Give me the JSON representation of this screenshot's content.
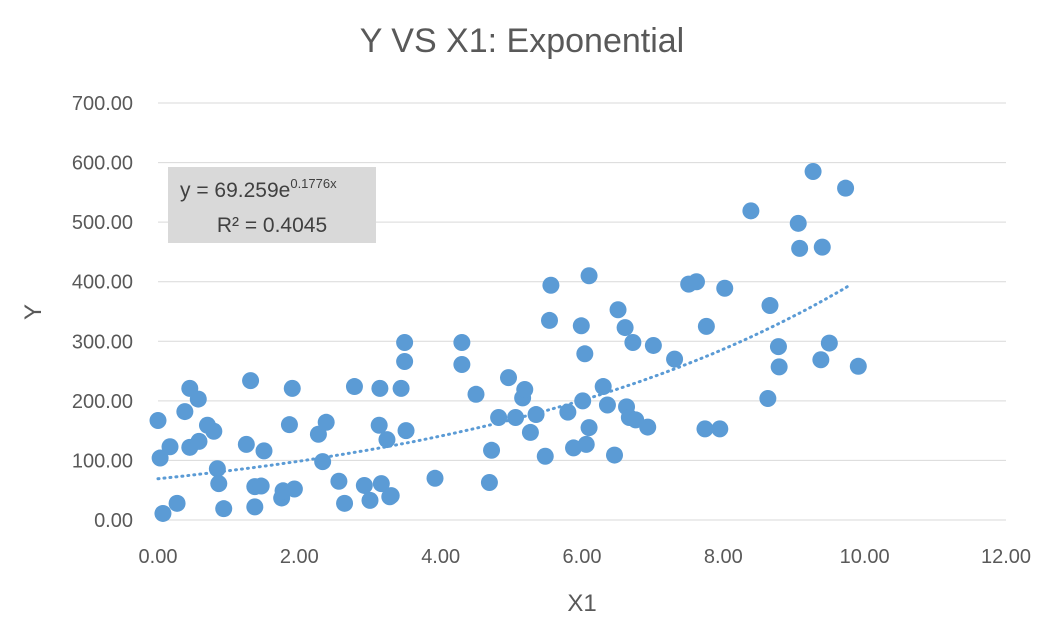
{
  "chart_data": {
    "type": "scatter",
    "title": "Y VS X1: Exponential",
    "xlabel": "X1",
    "ylabel": "Y",
    "xlim": [
      0,
      12
    ],
    "ylim": [
      0,
      700
    ],
    "xticks": [
      "0.00",
      "2.00",
      "4.00",
      "6.00",
      "8.00",
      "10.00",
      "12.00"
    ],
    "yticks": [
      "0.00",
      "100.00",
      "200.00",
      "300.00",
      "400.00",
      "500.00",
      "600.00",
      "700.00"
    ],
    "grid": true,
    "point_color": "#5b9bd5",
    "trendline": {
      "type": "exponential",
      "a": 69.259,
      "b": 0.1776,
      "x_range": [
        0.0,
        9.8
      ],
      "style": "dotted",
      "color": "#5b9bd5",
      "equation_prefix": "y = 69.259e",
      "equation_exponent": "0.1776x",
      "r2_label": "R² = 0.4045"
    },
    "points": [
      [
        0.0,
        167
      ],
      [
        0.03,
        104
      ],
      [
        0.07,
        11
      ],
      [
        0.17,
        123
      ],
      [
        0.27,
        28
      ],
      [
        0.38,
        182
      ],
      [
        0.45,
        221
      ],
      [
        0.45,
        122
      ],
      [
        0.57,
        203
      ],
      [
        0.58,
        132
      ],
      [
        0.7,
        159
      ],
      [
        0.79,
        149
      ],
      [
        0.84,
        86
      ],
      [
        0.86,
        61
      ],
      [
        0.93,
        19
      ],
      [
        1.25,
        127
      ],
      [
        1.31,
        234
      ],
      [
        1.37,
        56
      ],
      [
        1.37,
        22
      ],
      [
        1.46,
        57
      ],
      [
        1.5,
        116
      ],
      [
        1.75,
        37
      ],
      [
        1.77,
        49
      ],
      [
        1.86,
        160
      ],
      [
        1.9,
        221
      ],
      [
        1.93,
        52
      ],
      [
        2.27,
        144
      ],
      [
        2.33,
        98
      ],
      [
        2.38,
        164
      ],
      [
        2.56,
        65
      ],
      [
        2.64,
        28
      ],
      [
        2.78,
        224
      ],
      [
        2.92,
        58
      ],
      [
        3.0,
        33
      ],
      [
        3.13,
        159
      ],
      [
        3.14,
        221
      ],
      [
        3.16,
        61
      ],
      [
        3.24,
        135
      ],
      [
        3.28,
        39
      ],
      [
        3.3,
        41
      ],
      [
        3.44,
        221
      ],
      [
        3.49,
        266
      ],
      [
        3.49,
        298
      ],
      [
        3.51,
        150
      ],
      [
        3.92,
        70
      ],
      [
        4.3,
        298
      ],
      [
        4.3,
        261
      ],
      [
        4.5,
        211
      ],
      [
        4.69,
        63
      ],
      [
        4.72,
        117
      ],
      [
        4.82,
        172
      ],
      [
        4.96,
        239
      ],
      [
        5.06,
        172
      ],
      [
        5.16,
        205
      ],
      [
        5.19,
        219
      ],
      [
        5.27,
        147
      ],
      [
        5.35,
        177
      ],
      [
        5.48,
        107
      ],
      [
        5.54,
        335
      ],
      [
        5.56,
        394
      ],
      [
        5.8,
        181
      ],
      [
        5.88,
        121
      ],
      [
        5.99,
        326
      ],
      [
        6.01,
        200
      ],
      [
        6.04,
        279
      ],
      [
        6.06,
        127
      ],
      [
        6.1,
        155
      ],
      [
        6.1,
        410
      ],
      [
        6.3,
        224
      ],
      [
        6.36,
        193
      ],
      [
        6.46,
        109
      ],
      [
        6.51,
        353
      ],
      [
        6.61,
        323
      ],
      [
        6.63,
        190
      ],
      [
        6.67,
        172
      ],
      [
        6.72,
        298
      ],
      [
        6.76,
        168
      ],
      [
        6.93,
        156
      ],
      [
        7.01,
        293
      ],
      [
        7.31,
        270
      ],
      [
        7.51,
        396
      ],
      [
        7.62,
        400
      ],
      [
        7.74,
        153
      ],
      [
        7.76,
        325
      ],
      [
        7.95,
        153
      ],
      [
        8.02,
        389
      ],
      [
        8.39,
        519
      ],
      [
        8.63,
        204
      ],
      [
        8.66,
        360
      ],
      [
        8.78,
        291
      ],
      [
        8.79,
        257
      ],
      [
        9.06,
        498
      ],
      [
        9.08,
        456
      ],
      [
        9.27,
        585
      ],
      [
        9.38,
        269
      ],
      [
        9.4,
        458
      ],
      [
        9.5,
        297
      ],
      [
        9.73,
        557
      ],
      [
        9.91,
        258
      ]
    ]
  }
}
